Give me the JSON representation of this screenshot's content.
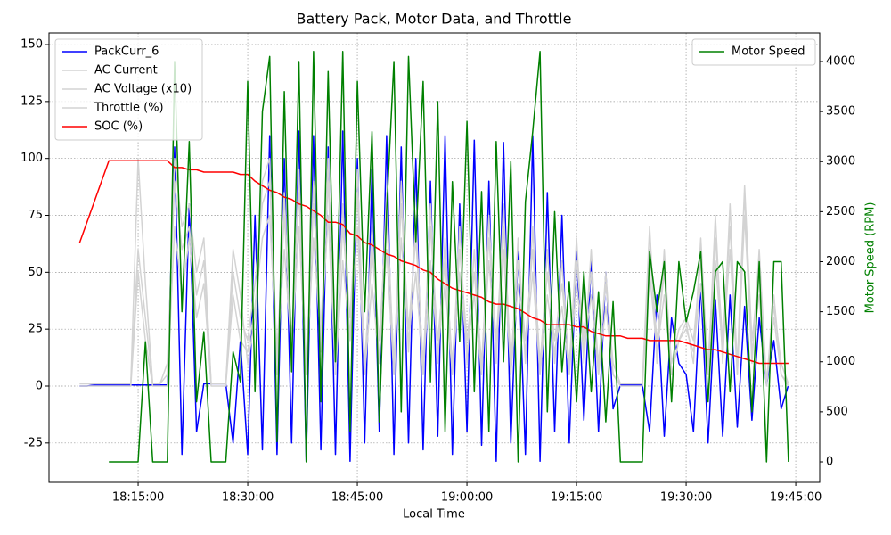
{
  "chart_data": {
    "type": "line",
    "title": "Battery Pack, Motor Data, and Throttle",
    "x_label": "Local Time",
    "y2_label": "Motor Speed (RPM)",
    "y2_label_color": "#008000",
    "x": [
      "18:07:00",
      "18:08:00",
      "18:09:00",
      "18:10:00",
      "18:11:00",
      "18:12:00",
      "18:13:00",
      "18:14:00",
      "18:15:00",
      "18:16:00",
      "18:17:00",
      "18:18:00",
      "18:19:00",
      "18:20:00",
      "18:21:00",
      "18:22:00",
      "18:23:00",
      "18:24:00",
      "18:25:00",
      "18:26:00",
      "18:27:00",
      "18:28:00",
      "18:29:00",
      "18:30:00",
      "18:31:00",
      "18:32:00",
      "18:33:00",
      "18:34:00",
      "18:35:00",
      "18:36:00",
      "18:37:00",
      "18:38:00",
      "18:39:00",
      "18:40:00",
      "18:41:00",
      "18:42:00",
      "18:43:00",
      "18:44:00",
      "18:45:00",
      "18:46:00",
      "18:47:00",
      "18:48:00",
      "18:49:00",
      "18:50:00",
      "18:51:00",
      "18:52:00",
      "18:53:00",
      "18:54:00",
      "18:55:00",
      "18:56:00",
      "18:57:00",
      "18:58:00",
      "18:59:00",
      "19:00:00",
      "19:01:00",
      "19:02:00",
      "19:03:00",
      "19:04:00",
      "19:05:00",
      "19:06:00",
      "19:07:00",
      "19:08:00",
      "19:09:00",
      "19:10:00",
      "19:11:00",
      "19:12:00",
      "19:13:00",
      "19:14:00",
      "19:15:00",
      "19:16:00",
      "19:17:00",
      "19:18:00",
      "19:19:00",
      "19:20:00",
      "19:21:00",
      "19:22:00",
      "19:23:00",
      "19:24:00",
      "19:25:00",
      "19:26:00",
      "19:27:00",
      "19:28:00",
      "19:29:00",
      "19:30:00",
      "19:31:00",
      "19:32:00",
      "19:33:00",
      "19:34:00",
      "19:35:00",
      "19:36:00",
      "19:37:00",
      "19:38:00",
      "19:39:00",
      "19:40:00",
      "19:41:00",
      "19:42:00",
      "19:43:00",
      "19:44:00"
    ],
    "xlim": [
      "18:02:48",
      "19:48:17"
    ],
    "xticks": [
      "18:15:00",
      "18:30:00",
      "18:45:00",
      "19:00:00",
      "19:15:00",
      "19:30:00",
      "19:45:00"
    ],
    "ylim": [
      -42.3,
      155.1
    ],
    "yticks": [
      -25,
      0,
      25,
      50,
      75,
      100,
      125,
      150
    ],
    "y2lim": [
      -205,
      4285
    ],
    "y2ticks": [
      0,
      500,
      1000,
      1500,
      2000,
      2500,
      3000,
      3500,
      4000
    ],
    "grid": true,
    "legend": "upper left",
    "legend2": "upper right",
    "series": [
      {
        "name": "PackCurr_6",
        "color": "#0000ff",
        "values": [
          0,
          0,
          0.5,
          0.5,
          0.5,
          0.5,
          0.5,
          0.5,
          0.5,
          0.5,
          0.5,
          0.5,
          0.5,
          105,
          -30,
          80,
          -20,
          1,
          1,
          1,
          1,
          -25,
          20,
          -30,
          75,
          -28,
          110,
          -30,
          100,
          -25,
          112,
          -33,
          110,
          -28,
          105,
          -30,
          112,
          -33,
          100,
          -25,
          95,
          -20,
          110,
          -30,
          105,
          -25,
          100,
          -28,
          90,
          -22,
          110,
          -30,
          80,
          -20,
          108,
          -26,
          90,
          -33,
          107,
          -25,
          60,
          -30,
          110,
          -33,
          85,
          -20,
          75,
          -25,
          60,
          -15,
          55,
          -20,
          50,
          -10,
          0.5,
          0.5,
          0.5,
          0.5,
          -20,
          40,
          -22,
          30,
          10,
          5,
          -20,
          45,
          -25,
          38,
          -22,
          40,
          -18,
          35,
          -15,
          30,
          0.5,
          20,
          -10,
          0.5
        ]
      },
      {
        "name": "AC Current",
        "color": "#d3d3d3",
        "values": [
          1,
          1,
          1,
          1,
          1,
          1,
          1,
          1,
          100,
          45,
          1,
          1,
          5,
          100,
          70,
          80,
          50,
          65,
          1,
          1,
          1,
          60,
          40,
          10,
          30,
          90,
          100,
          5,
          85,
          10,
          95,
          5,
          90,
          15,
          100,
          5,
          80,
          20,
          95,
          5,
          70,
          10,
          85,
          5,
          90,
          15,
          75,
          5,
          80,
          10,
          65,
          5,
          70,
          10,
          60,
          5,
          75,
          10,
          80,
          5,
          65,
          10,
          70,
          5,
          60,
          10,
          55,
          5,
          65,
          10,
          60,
          5,
          50,
          5,
          1,
          1,
          1,
          1,
          70,
          10,
          60,
          5,
          20,
          28,
          10,
          65,
          5,
          75,
          10,
          80,
          5,
          85,
          10,
          60,
          1,
          40,
          5,
          1
        ]
      },
      {
        "name": "AC Voltage (x10)",
        "color": "#d3d3d3",
        "values": [
          1,
          1,
          1,
          1,
          1,
          1,
          1,
          1,
          60,
          30,
          1,
          1,
          10,
          90,
          60,
          70,
          40,
          55,
          1,
          1,
          1,
          50,
          30,
          20,
          45,
          80,
          90,
          15,
          75,
          20,
          85,
          10,
          80,
          25,
          90,
          10,
          70,
          30,
          85,
          10,
          60,
          20,
          75,
          10,
          80,
          25,
          65,
          10,
          70,
          20,
          55,
          10,
          60,
          20,
          50,
          10,
          65,
          20,
          70,
          10,
          55,
          20,
          60,
          10,
          50,
          20,
          45,
          10,
          55,
          20,
          50,
          10,
          45,
          10,
          1,
          1,
          1,
          1,
          60,
          20,
          50,
          10,
          25,
          30,
          20,
          55,
          10,
          65,
          20,
          70,
          10,
          88,
          20,
          50,
          1,
          35,
          10,
          1
        ]
      },
      {
        "name": "Throttle (%)",
        "color": "#d3d3d3",
        "values": [
          0,
          0,
          0,
          0,
          0,
          0,
          0,
          0,
          50,
          20,
          0,
          0,
          0,
          70,
          40,
          65,
          30,
          45,
          0,
          0,
          0,
          40,
          20,
          15,
          35,
          65,
          75,
          10,
          60,
          15,
          70,
          5,
          65,
          20,
          75,
          5,
          55,
          20,
          70,
          5,
          45,
          10,
          60,
          5,
          65,
          20,
          50,
          5,
          55,
          15,
          45,
          5,
          50,
          15,
          40,
          5,
          55,
          15,
          60,
          5,
          45,
          15,
          50,
          5,
          40,
          15,
          35,
          5,
          45,
          15,
          40,
          5,
          35,
          5,
          0,
          0,
          0,
          0,
          50,
          15,
          40,
          5,
          20,
          25,
          15,
          45,
          5,
          55,
          15,
          60,
          5,
          75,
          15,
          40,
          0,
          30,
          5,
          0
        ]
      },
      {
        "name": "SOC (%)",
        "color": "#ff0000",
        "values": [
          63,
          72,
          81,
          90,
          99,
          99,
          99,
          99,
          99,
          99,
          99,
          99,
          99,
          96,
          96,
          95,
          95,
          94,
          94,
          94,
          94,
          94,
          93,
          93,
          90,
          88,
          86,
          85,
          83,
          82,
          80,
          79,
          77,
          75,
          72,
          72,
          71,
          67,
          66,
          63,
          62,
          60,
          58,
          57,
          55,
          54,
          53,
          51,
          50,
          47,
          45,
          43,
          42,
          41,
          40,
          39,
          37,
          36,
          36,
          35,
          34,
          32,
          30,
          29,
          27,
          27,
          27,
          27,
          26,
          26,
          24,
          23,
          22,
          22,
          22,
          21,
          21,
          21,
          20,
          20,
          20,
          20,
          20,
          19,
          18,
          17,
          16,
          16,
          15,
          14,
          13,
          12,
          11,
          10,
          10,
          10,
          10,
          10
        ]
      },
      {
        "name": "Motor Speed",
        "color": "#008000",
        "axis": "y2",
        "values": [
          null,
          null,
          null,
          null,
          0,
          0,
          0,
          0,
          0,
          1200,
          0,
          0,
          0,
          4000,
          1500,
          3200,
          600,
          1300,
          0,
          0,
          0,
          1100,
          800,
          3800,
          700,
          3500,
          4050,
          200,
          3700,
          900,
          4000,
          0,
          4100,
          600,
          3900,
          1000,
          4100,
          300,
          3800,
          1500,
          3300,
          400,
          2500,
          4000,
          500,
          4050,
          2200,
          3800,
          800,
          3600,
          300,
          2800,
          1200,
          3400,
          700,
          2700,
          300,
          3200,
          1000,
          3000,
          0,
          2600,
          3300,
          4100,
          500,
          2500,
          900,
          1800,
          600,
          1900,
          700,
          1700,
          400,
          1600,
          0,
          0,
          0,
          0,
          2100,
          1500,
          2000,
          600,
          2000,
          1400,
          1700,
          2100,
          600,
          1900,
          2000,
          700,
          2000,
          1900,
          500,
          2000,
          0,
          2000,
          2000,
          0
        ]
      }
    ]
  }
}
